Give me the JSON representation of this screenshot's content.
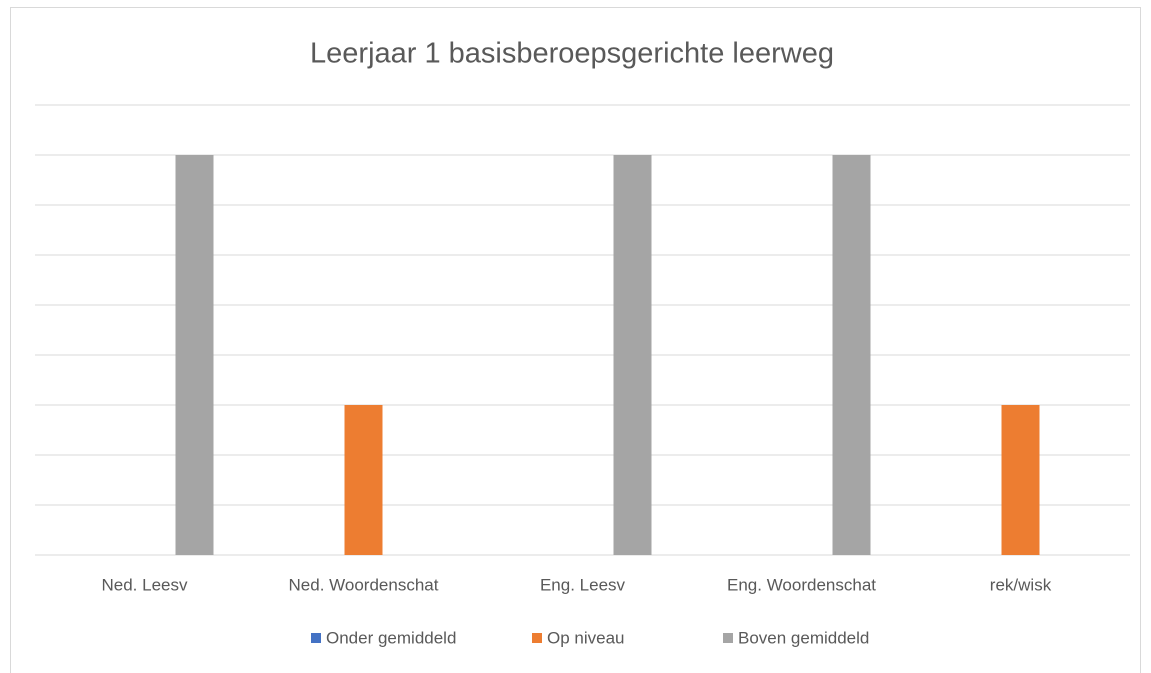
{
  "chart_data": {
    "type": "bar",
    "title": "Leerjaar 1 basisberoepsgerichte leerweg",
    "categories": [
      "Ned. Leesv",
      "Ned. Woordenschat",
      "Eng. Leesv",
      "Eng. Woordenschat",
      "rek/wisk"
    ],
    "series": [
      {
        "name": "Onder gemiddeld",
        "color": "#4472c4",
        "values": [
          0,
          0,
          0,
          0,
          0
        ]
      },
      {
        "name": "Op niveau",
        "color": "#ed7d31",
        "values": [
          0,
          3,
          0,
          0,
          3
        ]
      },
      {
        "name": "Boven gemiddeld",
        "color": "#a5a5a5",
        "values": [
          8,
          0,
          8,
          8,
          0
        ]
      }
    ],
    "ylim": [
      0,
      9
    ],
    "yticks": [
      0,
      1,
      2,
      3,
      4,
      5,
      6,
      7,
      8,
      9
    ],
    "grid": true,
    "legend": "bottom"
  }
}
